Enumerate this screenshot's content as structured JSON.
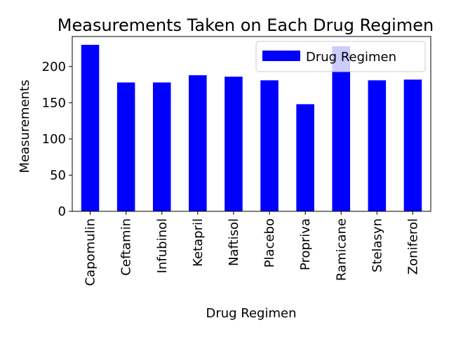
{
  "chart_data": {
    "type": "bar",
    "title": "Measurements Taken on Each Drug Regimen",
    "xlabel": "Drug Regimen",
    "ylabel": "Measurements",
    "categories": [
      "Capomulin",
      "Ceftamin",
      "Infubinol",
      "Ketapril",
      "Naftisol",
      "Placebo",
      "Propriva",
      "Ramicane",
      "Stelasyn",
      "Zoniferol"
    ],
    "series": [
      {
        "name": "Drug Regimen",
        "values": [
          230,
          178,
          178,
          188,
          186,
          181,
          148,
          228,
          181,
          182
        ],
        "color": "#0000ff"
      }
    ],
    "ylim": [
      0,
      241.5
    ],
    "yticks": [
      0,
      50,
      100,
      150,
      200
    ],
    "grid": false,
    "legend": "top-right"
  }
}
